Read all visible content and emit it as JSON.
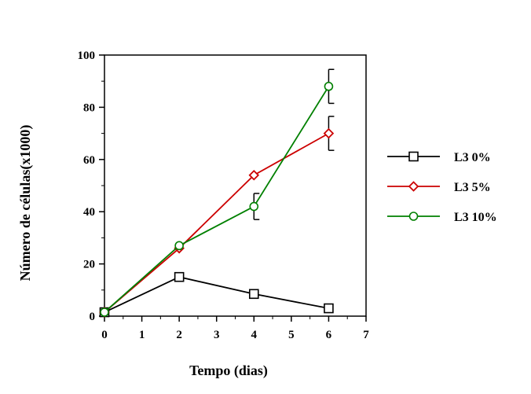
{
  "chart_data": {
    "type": "line",
    "title": "",
    "xlabel": "Tempo (dias)",
    "ylabel": "Número de células(x1000)",
    "xlim": [
      0,
      7
    ],
    "ylim": [
      0,
      100
    ],
    "x_ticks": [
      0,
      1,
      2,
      3,
      4,
      5,
      6,
      7
    ],
    "y_ticks": [
      0,
      20,
      40,
      60,
      80,
      100
    ],
    "grid": false,
    "legend_position": "right",
    "series": [
      {
        "name": "L3 0%",
        "color": "#000000",
        "marker": "square",
        "points": [
          {
            "x": 0,
            "y": 1.5
          },
          {
            "x": 2,
            "y": 15
          },
          {
            "x": 4,
            "y": 8.5
          },
          {
            "x": 6,
            "y": 3
          }
        ]
      },
      {
        "name": "L3 5%",
        "color": "#cc0000",
        "marker": "diamond",
        "points": [
          {
            "x": 0,
            "y": 1.5
          },
          {
            "x": 2,
            "y": 26
          },
          {
            "x": 4,
            "y": 54
          },
          {
            "x": 6,
            "y": 70,
            "err": 6.5
          }
        ]
      },
      {
        "name": "L3 10%",
        "color": "#008000",
        "marker": "circle",
        "points": [
          {
            "x": 0,
            "y": 1.5
          },
          {
            "x": 2,
            "y": 27
          },
          {
            "x": 4,
            "y": 42,
            "err": 5
          },
          {
            "x": 6,
            "y": 88,
            "err": 6.5
          }
        ]
      }
    ]
  }
}
